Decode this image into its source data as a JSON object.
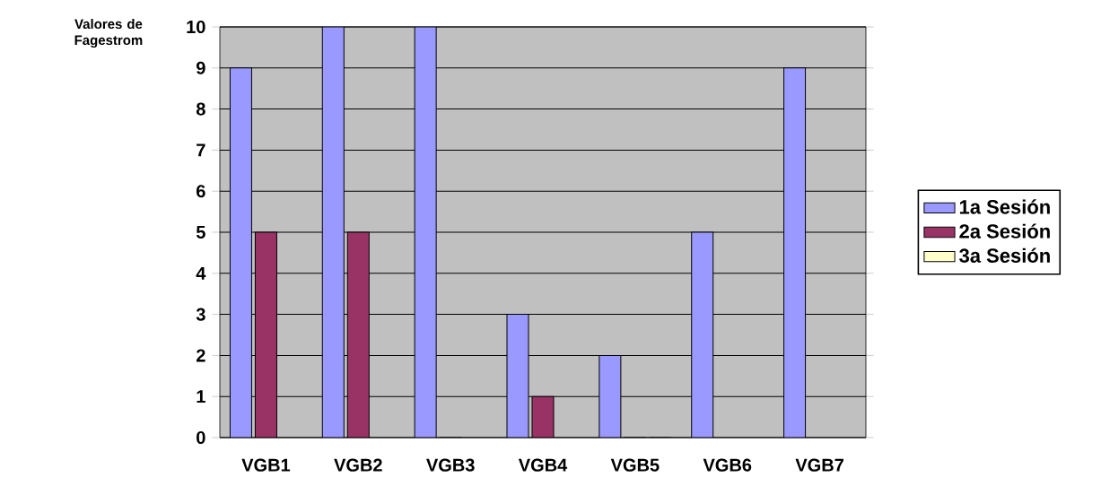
{
  "chart_data": {
    "type": "bar",
    "ylabel": "Valores de Fagestrom",
    "categories": [
      "VGB1",
      "VGB2",
      "VGB3",
      "VGB4",
      "VGB5",
      "VGB6",
      "VGB7"
    ],
    "series": [
      {
        "name": "1a Sesión",
        "color": "#9999ff",
        "values": [
          9,
          10,
          10,
          3,
          2,
          5,
          9
        ]
      },
      {
        "name": "2a Sesión",
        "color": "#993366",
        "values": [
          5,
          5,
          0,
          1,
          0,
          null,
          null
        ]
      },
      {
        "name": "3a Sesión",
        "color": "#ffffcc",
        "values": [
          null,
          null,
          null,
          null,
          0,
          null,
          null
        ]
      }
    ],
    "ylim": [
      0,
      10
    ],
    "yticks": [
      0,
      1,
      2,
      3,
      4,
      5,
      6,
      7,
      8,
      9,
      10
    ],
    "grid": "y",
    "legend": "right"
  }
}
